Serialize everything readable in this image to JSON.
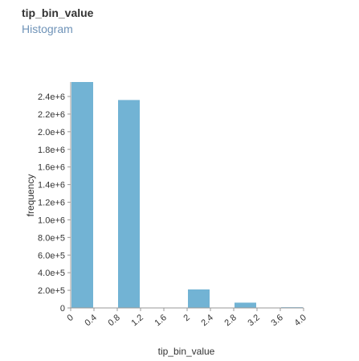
{
  "header": {
    "title": "tip_bin_value",
    "subtitle": "Histogram"
  },
  "chart_data": {
    "type": "bar",
    "xlabel": "tip_bin_value",
    "ylabel": "frequency",
    "bar_color": "#72b3d4",
    "axis_color": "#999999",
    "grid": false,
    "bin_width": 0.4,
    "xlim": [
      0,
      4.0
    ],
    "ylim": [
      0,
      2500000
    ],
    "x_ticks": [
      "0",
      "0.4",
      "0.8",
      "1.2",
      "1.6",
      "2",
      "2.4",
      "2.8",
      "3.2",
      "3.6",
      "4.0"
    ],
    "y_ticks": [
      "0",
      "2.0e+5",
      "4.0e+5",
      "6.0e+5",
      "8.0e+5",
      "1.0e+6",
      "1.2e+6",
      "1.4e+6",
      "1.6e+6",
      "1.8e+6",
      "2.0e+6",
      "2.2e+6",
      "2.4e+6"
    ],
    "bins": [
      {
        "start": 0.0,
        "value": 2580000
      },
      {
        "start": 0.4,
        "value": 0
      },
      {
        "start": 0.8,
        "value": 2360000
      },
      {
        "start": 1.2,
        "value": 0
      },
      {
        "start": 1.6,
        "value": 0
      },
      {
        "start": 2.0,
        "value": 210000
      },
      {
        "start": 2.4,
        "value": 0
      },
      {
        "start": 2.8,
        "value": 60000
      },
      {
        "start": 3.2,
        "value": 0
      },
      {
        "start": 3.6,
        "value": 8000
      }
    ]
  }
}
